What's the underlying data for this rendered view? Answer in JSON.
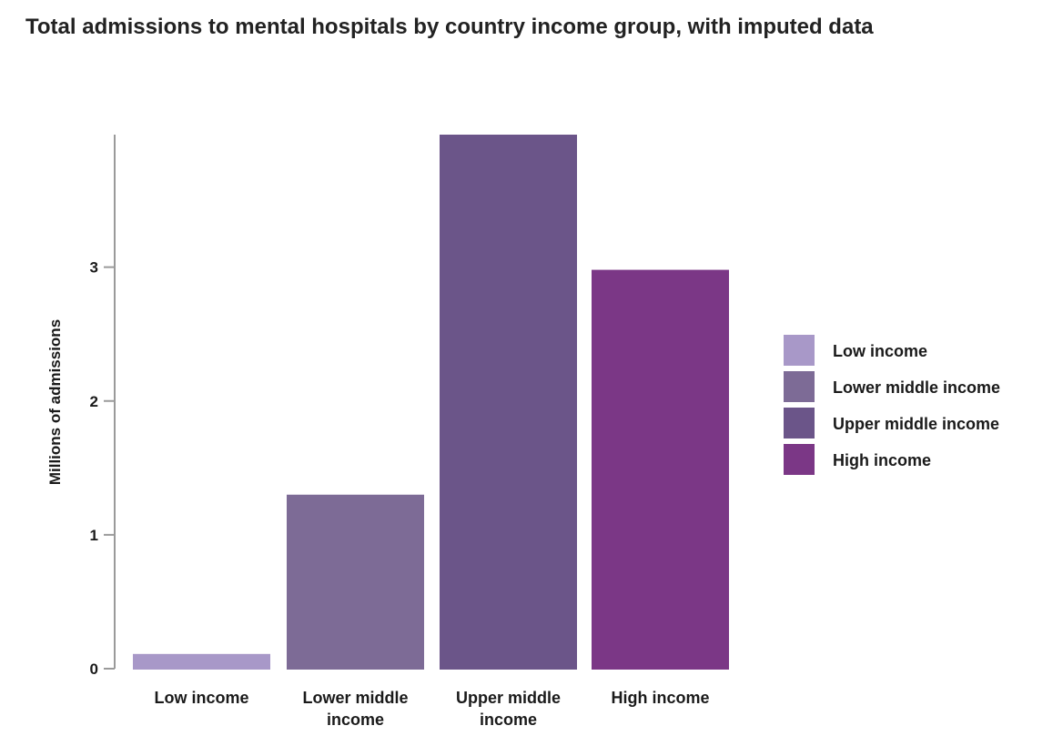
{
  "chart_data": {
    "type": "bar",
    "title": "Total admissions to mental hospitals by country income group, with imputed data",
    "xlabel": "",
    "ylabel": "Millions of admissions",
    "categories": [
      "Low income",
      "Lower middle income",
      "Upper middle income",
      "High income"
    ],
    "category_label_lines": [
      [
        "Low income"
      ],
      [
        "Lower middle",
        "income"
      ],
      [
        "Upper middle",
        "income"
      ],
      [
        "High income"
      ]
    ],
    "values": [
      0.11,
      1.3,
      3.99,
      2.98
    ],
    "colors": [
      "#a898c8",
      "#7d6b96",
      "#6b5589",
      "#7b3786"
    ],
    "ylim": [
      0,
      3.99
    ],
    "yticks": [
      0,
      1,
      2,
      3
    ],
    "grid": false,
    "legend": {
      "placement": "right",
      "entries": [
        "Low income",
        "Lower middle income",
        "Upper middle income",
        "High income"
      ]
    }
  }
}
